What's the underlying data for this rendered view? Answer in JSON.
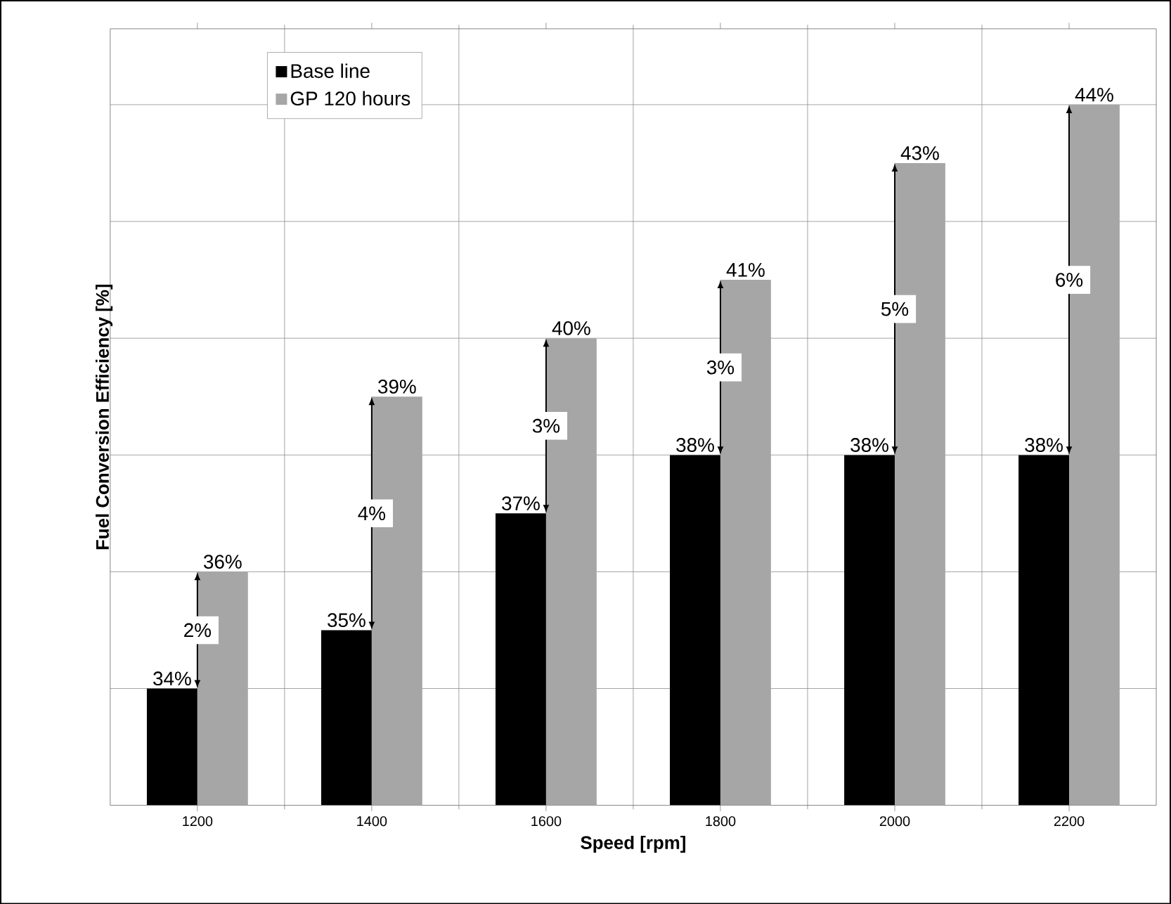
{
  "chart_data": {
    "type": "bar",
    "xlabel": "Speed [rpm]",
    "ylabel": "Fuel Conversion Efficiency  [%]",
    "categories": [
      "1200",
      "1400",
      "1600",
      "1800",
      "2000",
      "2200"
    ],
    "series": [
      {
        "name": "Base line",
        "color": "#000000",
        "values": [
          34,
          35,
          37,
          38,
          38,
          38
        ],
        "value_labels": [
          "34%",
          "35%",
          "37%",
          "38%",
          "38%",
          "38%"
        ]
      },
      {
        "name": "GP 120 hours",
        "color": "#a6a6a6",
        "values": [
          36,
          39,
          40,
          41,
          43,
          44
        ],
        "value_labels": [
          "36%",
          "39%",
          "40%",
          "41%",
          "43%",
          "44%"
        ]
      }
    ],
    "ylim": [
      32,
      45.3
    ],
    "yticks": [
      {
        "value": 34,
        "label": null
      },
      {
        "value": 36,
        "label": null
      },
      {
        "value": 38,
        "label": null
      },
      {
        "value": 40,
        "label": null
      },
      {
        "value": 42,
        "label": null
      },
      {
        "value": 44,
        "label": null
      }
    ],
    "tick_labels": "x",
    "grid": true,
    "legend": "top left",
    "annotations": [
      {
        "text": "2%",
        "x": "1200",
        "y": 35
      },
      {
        "text": "4%",
        "x": "1400",
        "y": 37
      },
      {
        "text": "3%",
        "x": "1600",
        "y": 38.5
      },
      {
        "text": "3%",
        "x": "1800",
        "y": 39.5
      },
      {
        "text": "5%",
        "x": "2000",
        "y": 40.5
      },
      {
        "text": "6%",
        "x": "2200",
        "y": 41
      }
    ]
  }
}
